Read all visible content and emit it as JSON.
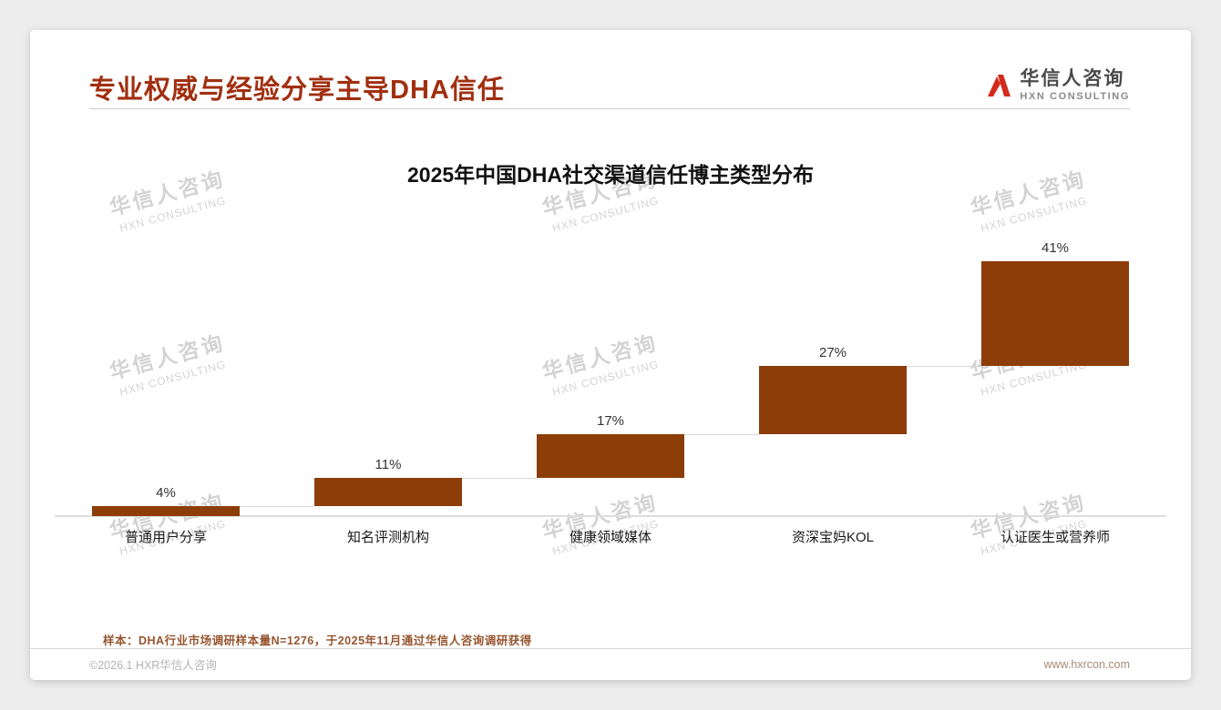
{
  "page": {
    "title": "专业权威与经验分享主导DHA信任",
    "logo": {
      "name": "华信人咨询",
      "sub": "HXN CONSULTING"
    },
    "watermark": {
      "line1": "华信人咨询",
      "line2": "HXN CONSULTING"
    },
    "footer": {
      "note": "样本：DHA行业市场调研样本量N=1276，于2025年11月通过华信人咨询调研获得",
      "copyright": "©2026.1 HXR华信人咨询",
      "website": "www.hxrcon.com"
    }
  },
  "chart_data": {
    "type": "bar",
    "subtype": "waterfall",
    "title": "2025年中国DHA社交渠道信任博主类型分布",
    "categories": [
      "普通用户分享",
      "知名评测机构",
      "健康领域媒体",
      "资深宝妈KOL",
      "认证医生或营养师"
    ],
    "values": [
      4,
      11,
      17,
      27,
      41
    ],
    "value_labels": [
      "4%",
      "11%",
      "17%",
      "27%",
      "41%"
    ],
    "cumulative": [
      4,
      15,
      32,
      59,
      100
    ],
    "total": 100,
    "ylim": [
      0,
      100
    ],
    "bar_color": "#8C3D08",
    "grid": false,
    "legend": false,
    "xlabel": "",
    "ylabel": ""
  }
}
